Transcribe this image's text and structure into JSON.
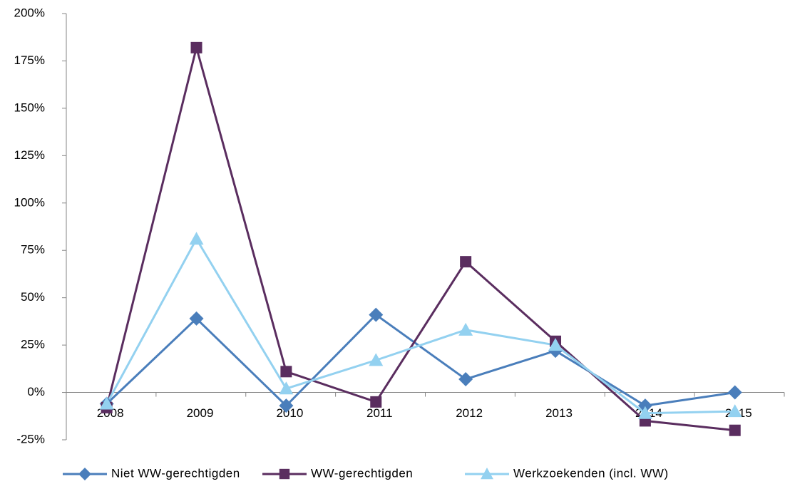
{
  "chart_data": {
    "type": "line",
    "categories": [
      "2008",
      "2009",
      "2010",
      "2011",
      "2012",
      "2013",
      "2014",
      "2015"
    ],
    "series": [
      {
        "name": "Niet WW-gerechtigden",
        "color": "#4a7ebb",
        "marker": "diamond",
        "values": [
          -6,
          39,
          -7,
          41,
          7,
          22,
          -7,
          0
        ]
      },
      {
        "name": "WW-gerechtigden",
        "color": "#5a2d5f",
        "marker": "square",
        "values": [
          -8,
          182,
          11,
          -5,
          69,
          27,
          -15,
          -20
        ]
      },
      {
        "name": "Werkzoekenden (incl. WW)",
        "color": "#93d1f0",
        "marker": "triangle",
        "values": [
          -6,
          81,
          2,
          17,
          33,
          25,
          -11,
          -10
        ]
      }
    ],
    "ylim": [
      -25,
      200
    ],
    "yticks": [
      {
        "value": -25,
        "label": "-25%"
      },
      {
        "value": 0,
        "label": "0%"
      },
      {
        "value": 25,
        "label": "25%"
      },
      {
        "value": 50,
        "label": "50%"
      },
      {
        "value": 75,
        "label": "75%"
      },
      {
        "value": 100,
        "label": "100%"
      },
      {
        "value": 125,
        "label": "125%"
      },
      {
        "value": 150,
        "label": "150%"
      },
      {
        "value": 175,
        "label": "175%"
      },
      {
        "value": 200,
        "label": "200%"
      }
    ],
    "grid": false,
    "legend": "bottom"
  }
}
